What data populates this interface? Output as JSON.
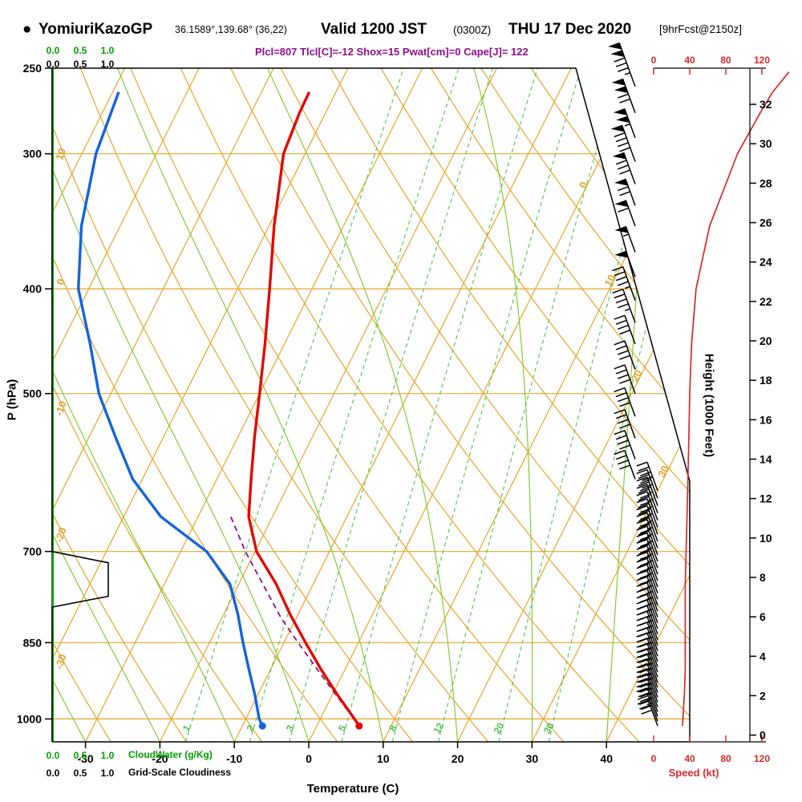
{
  "header": {
    "bullet": "●",
    "station": "YomiuriKazoGP",
    "coords": "36.1589°,139.68° (36,22)",
    "valid_bold": "Valid 1200 JST",
    "valid_z": "(0300Z)",
    "valid_date": "THU 17 Dec 2020",
    "fcst": "[9hrFcst@2150z]",
    "indices": "Plcl=807 Tlcl[C]=-12 Shox=15 Pwat[cm]=0 Cape[J]= 122"
  },
  "axes": {
    "pressure_label": "P (hPa)",
    "pressure_ticks": [
      250,
      300,
      400,
      500,
      700,
      850,
      1000
    ],
    "temp_label": "Temperature (C)",
    "temp_ticks": [
      -30,
      -20,
      -10,
      0,
      10,
      20,
      30,
      40
    ],
    "height_label": "Height (1000 Feet)",
    "height_ticks": [
      0,
      2,
      4,
      6,
      8,
      10,
      12,
      14,
      16,
      18,
      20,
      22,
      24,
      26,
      28,
      30,
      32
    ],
    "speed_label": "Speed (kt)",
    "speed_ticks": [
      0,
      40,
      80,
      120
    ],
    "cloud_scale": [
      "0.0",
      "0.5",
      "1.0"
    ],
    "cloudwater_label": "CloudWater (g/Kg)",
    "cloudiness_label": "Grid-Scale Cloudiness",
    "dry_adiabat_labels": [
      10,
      0,
      -10,
      -20,
      -30
    ],
    "isotherm_diag_labels": [
      0,
      10,
      20,
      30
    ],
    "mixing_ratio_labels": [
      1,
      2,
      3,
      5,
      8,
      12,
      20,
      30
    ]
  },
  "colors": {
    "orange": "#E6A42B",
    "green_moist": "#84C93C",
    "green_mix": "#4DC44D",
    "green_axis": "#00B400",
    "green_text": "#00A000",
    "red": "#E10800",
    "blue": "#1463DC",
    "purple": "#8E0D8E",
    "speed_red": "#D42A2A",
    "black": "#000000"
  },
  "chart_data": {
    "type": "line",
    "subtype": "skewt-log-p-sounding",
    "pressure_range_hpa": [
      250,
      1050
    ],
    "temp_axis_c": [
      -30,
      40
    ],
    "height_axis_kft": [
      0,
      32
    ],
    "speed_axis_kt": [
      0,
      120
    ],
    "surface": {
      "pressure_hpa": 1015,
      "temperature_c": 5.7,
      "dewpoint_c": -7.3
    },
    "temperature_c": [
      [
        1015,
        5.7
      ],
      [
        1000,
        4.6
      ],
      [
        950,
        0.7
      ],
      [
        900,
        -3.2
      ],
      [
        850,
        -7.1
      ],
      [
        800,
        -11.1
      ],
      [
        750,
        -15.0
      ],
      [
        700,
        -19.8
      ],
      [
        650,
        -23.2
      ],
      [
        600,
        -25.4
      ],
      [
        550,
        -27.7
      ],
      [
        500,
        -30.0
      ],
      [
        450,
        -32.6
      ],
      [
        400,
        -35.7
      ],
      [
        350,
        -39.3
      ],
      [
        300,
        -42.9
      ],
      [
        275,
        -43.5
      ],
      [
        263,
        -43.6
      ]
    ],
    "dewpoint_c": [
      [
        1015,
        -7.3
      ],
      [
        1000,
        -8.2
      ],
      [
        950,
        -10.4
      ],
      [
        900,
        -12.9
      ],
      [
        850,
        -15.5
      ],
      [
        800,
        -18.1
      ],
      [
        750,
        -21.2
      ],
      [
        700,
        -26.5
      ],
      [
        650,
        -35.0
      ],
      [
        600,
        -41.3
      ],
      [
        550,
        -46.3
      ],
      [
        500,
        -51.6
      ],
      [
        450,
        -56.1
      ],
      [
        400,
        -61.4
      ],
      [
        350,
        -65.2
      ],
      [
        300,
        -68.1
      ],
      [
        263,
        -69.2
      ]
    ],
    "parcel_c": [
      [
        1015,
        5.7
      ],
      [
        950,
        0.5
      ],
      [
        900,
        -3.7
      ],
      [
        850,
        -8.1
      ],
      [
        807,
        -12.0
      ],
      [
        750,
        -16.8
      ],
      [
        700,
        -21.3
      ],
      [
        650,
        -25.6
      ]
    ],
    "wind_speed_kt": [
      [
        1015,
        32
      ],
      [
        950,
        34
      ],
      [
        900,
        35
      ],
      [
        850,
        35
      ],
      [
        800,
        35
      ],
      [
        750,
        35
      ],
      [
        700,
        36
      ],
      [
        650,
        37
      ],
      [
        600,
        38
      ],
      [
        550,
        39
      ],
      [
        500,
        40
      ],
      [
        450,
        42
      ],
      [
        400,
        47
      ],
      [
        350,
        62
      ],
      [
        300,
        93
      ],
      [
        275,
        118
      ],
      [
        263,
        132
      ],
      [
        252,
        150
      ]
    ],
    "cloudiness": [
      [
        250,
        0
      ],
      [
        700,
        0
      ],
      [
        717,
        1.0
      ],
      [
        770,
        1.0
      ],
      [
        788,
        0
      ],
      [
        1050,
        0
      ]
    ],
    "cloud_water_gkg": [
      [
        250,
        0
      ],
      [
        1050,
        0
      ]
    ],
    "grid": {
      "isotherms_c": [
        -110,
        40
      ],
      "dry_adiabats_c": [
        -90,
        140
      ],
      "moist_adiabats_c": [
        -30,
        -20,
        -10,
        0,
        10,
        20,
        30,
        40
      ],
      "mixing_ratio_gkg": [
        1,
        2,
        3,
        5,
        8,
        12,
        20,
        30
      ],
      "pressure_lines": [
        300,
        400,
        500,
        700,
        850,
        1000
      ]
    },
    "barb_levels_upper": [
      260,
      275,
      290,
      305,
      320,
      335,
      350,
      370,
      390,
      410,
      430,
      450,
      475,
      500,
      525,
      550,
      575,
      600
    ],
    "barb_levels_lower": [
      615,
      625,
      635,
      645,
      655,
      665,
      675,
      685,
      695,
      705,
      715,
      725,
      735,
      745,
      755,
      765,
      775,
      785,
      795,
      805,
      815,
      825,
      835,
      845,
      855,
      865,
      875,
      885,
      895,
      905,
      915,
      925,
      935,
      945,
      955,
      965,
      975,
      985,
      995,
      1005,
      1015
    ]
  }
}
